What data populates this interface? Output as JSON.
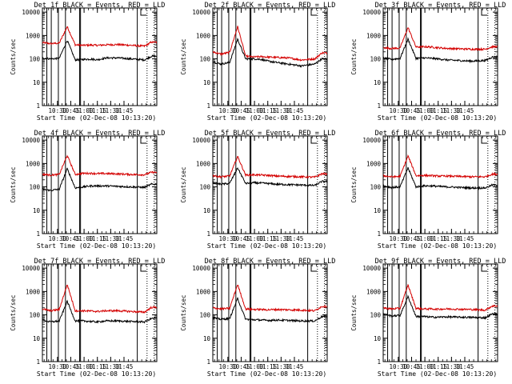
{
  "figure": {
    "type": "line",
    "description_note": "3x3 grid of detector rate plots",
    "x_label": "Start Time (02-Dec-08 10:13:20)",
    "y_label": "Counts/sec",
    "y_scale": "log",
    "ylim": [
      1,
      15000
    ],
    "y_ticks": [
      1,
      10,
      100,
      1000,
      10000
    ],
    "x_tick_labels": [
      "10:30",
      "10:45",
      "11:00",
      "11:15",
      "11:30",
      "11:45"
    ],
    "colors": {
      "events": "#000000",
      "lld": "#d40000",
      "axes": "#000000",
      "background": "#ffffff"
    }
  },
  "chart_data": [
    {
      "type": "line",
      "title": "Det 1f BLACK = Events, RED = LLD",
      "ylabel": "Counts/sec",
      "xlabel": "Start Time (02-Dec-08 10:13:20)",
      "series": [
        {
          "name": "LLD",
          "color": "#d40000",
          "x_min": [
            0,
            9,
            19,
            28,
            37,
            46,
            55,
            62,
            72,
            85,
            100,
            115,
            123
          ],
          "values": [
            500,
            450,
            470,
            2400,
            400,
            380,
            390,
            380,
            400,
            410,
            380,
            350,
            520
          ]
        },
        {
          "name": "Events",
          "color": "#000000",
          "x_min": [
            0,
            9,
            19,
            28,
            37,
            46,
            55,
            62,
            72,
            85,
            100,
            115,
            123
          ],
          "values": [
            110,
            100,
            105,
            620,
            90,
            95,
            98,
            92,
            110,
            110,
            100,
            90,
            130
          ]
        }
      ],
      "vlines_solid_min": [
        5,
        10,
        18,
        26,
        42,
        43,
        107
      ],
      "vlines_dotted_min": [
        118,
        126
      ]
    },
    {
      "type": "line",
      "title": "Det 2f BLACK = Events, RED = LLD",
      "ylabel": "Counts/sec",
      "xlabel": "Start Time (02-Dec-08 10:13:20)",
      "series": [
        {
          "name": "LLD",
          "color": "#d40000",
          "x_min": [
            0,
            9,
            19,
            28,
            37,
            46,
            55,
            62,
            72,
            85,
            100,
            115,
            123
          ],
          "values": [
            200,
            160,
            190,
            2400,
            130,
            120,
            125,
            120,
            115,
            110,
            90,
            100,
            180
          ]
        },
        {
          "name": "Events",
          "color": "#000000",
          "x_min": [
            0,
            9,
            19,
            28,
            37,
            46,
            55,
            62,
            72,
            85,
            100,
            115,
            123
          ],
          "values": [
            75,
            60,
            70,
            700,
            100,
            100,
            95,
            80,
            70,
            60,
            50,
            60,
            100
          ]
        }
      ],
      "vlines_solid_min": [
        5,
        10,
        18,
        26,
        42,
        43,
        107
      ],
      "vlines_dotted_min": [
        118,
        126
      ]
    },
    {
      "type": "line",
      "title": "Det 3f BLACK = Events, RED = LLD",
      "ylabel": "Counts/sec",
      "xlabel": "Start Time (02-Dec-08 10:13:20)",
      "series": [
        {
          "name": "LLD",
          "color": "#d40000",
          "x_min": [
            0,
            9,
            19,
            28,
            37,
            46,
            55,
            62,
            72,
            85,
            100,
            115,
            123
          ],
          "values": [
            300,
            280,
            290,
            2200,
            320,
            330,
            320,
            300,
            280,
            270,
            260,
            260,
            330
          ]
        },
        {
          "name": "Events",
          "color": "#000000",
          "x_min": [
            0,
            9,
            19,
            28,
            37,
            46,
            55,
            62,
            72,
            85,
            100,
            115,
            123
          ],
          "values": [
            110,
            95,
            105,
            700,
            105,
            110,
            105,
            100,
            90,
            85,
            80,
            85,
            120
          ]
        }
      ],
      "vlines_solid_min": [
        5,
        10,
        18,
        26,
        42,
        43,
        107
      ],
      "vlines_dotted_min": [
        118,
        126
      ]
    },
    {
      "type": "line",
      "title": "Det 4f BLACK = Events, RED = LLD",
      "ylabel": "Counts/sec",
      "xlabel": "Start Time (02-Dec-08 10:13:20)",
      "series": [
        {
          "name": "LLD",
          "color": "#d40000",
          "x_min": [
            0,
            9,
            19,
            28,
            37,
            46,
            55,
            62,
            72,
            85,
            100,
            115,
            123
          ],
          "values": [
            350,
            320,
            340,
            2200,
            340,
            380,
            380,
            370,
            370,
            360,
            340,
            330,
            420
          ]
        },
        {
          "name": "Events",
          "color": "#000000",
          "x_min": [
            0,
            9,
            19,
            28,
            37,
            46,
            55,
            62,
            72,
            85,
            100,
            115,
            123
          ],
          "values": [
            80,
            70,
            80,
            600,
            90,
            100,
            110,
            110,
            110,
            105,
            100,
            95,
            130
          ]
        }
      ],
      "vlines_solid_min": [
        5,
        10,
        18,
        26,
        42,
        43,
        107
      ],
      "vlines_dotted_min": [
        118,
        126
      ]
    },
    {
      "type": "line",
      "title": "Det 5f BLACK = Events, RED = LLD",
      "ylabel": "Counts/sec",
      "xlabel": "Start Time (02-Dec-08 10:13:20)",
      "series": [
        {
          "name": "LLD",
          "color": "#d40000",
          "x_min": [
            0,
            9,
            19,
            28,
            37,
            46,
            55,
            62,
            72,
            85,
            100,
            115,
            123
          ],
          "values": [
            300,
            270,
            290,
            2000,
            320,
            330,
            320,
            310,
            290,
            280,
            270,
            260,
            360
          ]
        },
        {
          "name": "Events",
          "color": "#000000",
          "x_min": [
            0,
            9,
            19,
            28,
            37,
            46,
            55,
            62,
            72,
            85,
            100,
            115,
            123
          ],
          "values": [
            150,
            130,
            140,
            650,
            140,
            150,
            145,
            140,
            130,
            125,
            120,
            115,
            170
          ]
        }
      ],
      "vlines_solid_min": [
        5,
        10,
        18,
        26,
        42,
        43,
        107
      ],
      "vlines_dotted_min": [
        118,
        126
      ]
    },
    {
      "type": "line",
      "title": "Det 6f BLACK = Events, RED = LLD",
      "ylabel": "Counts/sec",
      "xlabel": "Start Time (02-Dec-08 10:13:20)",
      "series": [
        {
          "name": "LLD",
          "color": "#d40000",
          "x_min": [
            0,
            9,
            19,
            28,
            37,
            46,
            55,
            62,
            72,
            85,
            100,
            115,
            123
          ],
          "values": [
            300,
            270,
            280,
            2100,
            300,
            310,
            300,
            290,
            290,
            280,
            270,
            270,
            350
          ]
        },
        {
          "name": "Events",
          "color": "#000000",
          "x_min": [
            0,
            9,
            19,
            28,
            37,
            46,
            55,
            62,
            72,
            85,
            100,
            115,
            123
          ],
          "values": [
            110,
            95,
            100,
            650,
            100,
            110,
            110,
            105,
            100,
            95,
            90,
            90,
            120
          ]
        }
      ],
      "vlines_solid_min": [
        5,
        10,
        18,
        26,
        42,
        43,
        107
      ],
      "vlines_dotted_min": [
        118,
        126
      ]
    },
    {
      "type": "line",
      "title": "Det 7f BLACK = Events, RED = LLD",
      "ylabel": "Counts/sec",
      "xlabel": "Start Time (02-Dec-08 10:13:20)",
      "series": [
        {
          "name": "LLD",
          "color": "#d40000",
          "x_min": [
            0,
            9,
            19,
            28,
            37,
            46,
            55,
            62,
            72,
            85,
            100,
            115,
            123
          ],
          "values": [
            180,
            150,
            170,
            2000,
            150,
            150,
            145,
            140,
            150,
            150,
            140,
            130,
            210
          ]
        },
        {
          "name": "Events",
          "color": "#000000",
          "x_min": [
            0,
            9,
            19,
            28,
            37,
            46,
            55,
            62,
            72,
            85,
            100,
            115,
            123
          ],
          "values": [
            60,
            50,
            55,
            380,
            55,
            55,
            52,
            50,
            55,
            55,
            52,
            50,
            70
          ]
        }
      ],
      "vlines_solid_min": [
        5,
        10,
        18,
        26,
        42,
        43,
        107
      ],
      "vlines_dotted_min": [
        118,
        126
      ]
    },
    {
      "type": "line",
      "title": "Det 8f BLACK = Events, RED = LLD",
      "ylabel": "Counts/sec",
      "xlabel": "Start Time (02-Dec-08 10:13:20)",
      "series": [
        {
          "name": "LLD",
          "color": "#d40000",
          "x_min": [
            0,
            9,
            19,
            28,
            37,
            46,
            55,
            62,
            72,
            85,
            100,
            115,
            123
          ],
          "values": [
            200,
            180,
            190,
            2000,
            180,
            170,
            170,
            165,
            170,
            165,
            160,
            150,
            230
          ]
        },
        {
          "name": "Events",
          "color": "#000000",
          "x_min": [
            0,
            9,
            19,
            28,
            37,
            46,
            55,
            62,
            72,
            85,
            100,
            115,
            123
          ],
          "values": [
            75,
            65,
            70,
            500,
            65,
            62,
            60,
            58,
            60,
            58,
            55,
            55,
            85
          ]
        }
      ],
      "vlines_solid_min": [
        5,
        10,
        18,
        26,
        42,
        43,
        107
      ],
      "vlines_dotted_min": [
        118,
        126
      ]
    },
    {
      "type": "line",
      "title": "Det 9f BLACK = Events, RED = LLD",
      "ylabel": "Counts/sec",
      "xlabel": "Start Time (02-Dec-08 10:13:20)",
      "series": [
        {
          "name": "LLD",
          "color": "#d40000",
          "x_min": [
            0,
            9,
            19,
            28,
            37,
            46,
            55,
            62,
            72,
            85,
            100,
            115,
            123
          ],
          "values": [
            200,
            180,
            190,
            1900,
            190,
            180,
            180,
            175,
            180,
            175,
            170,
            160,
            240
          ]
        },
        {
          "name": "Events",
          "color": "#000000",
          "x_min": [
            0,
            9,
            19,
            28,
            37,
            46,
            55,
            62,
            72,
            85,
            100,
            115,
            123
          ],
          "values": [
            110,
            90,
            95,
            600,
            85,
            85,
            80,
            80,
            82,
            80,
            78,
            75,
            110
          ]
        }
      ],
      "vlines_solid_min": [
        5,
        10,
        18,
        26,
        42,
        43,
        107
      ],
      "vlines_dotted_min": [
        118,
        126
      ]
    }
  ]
}
